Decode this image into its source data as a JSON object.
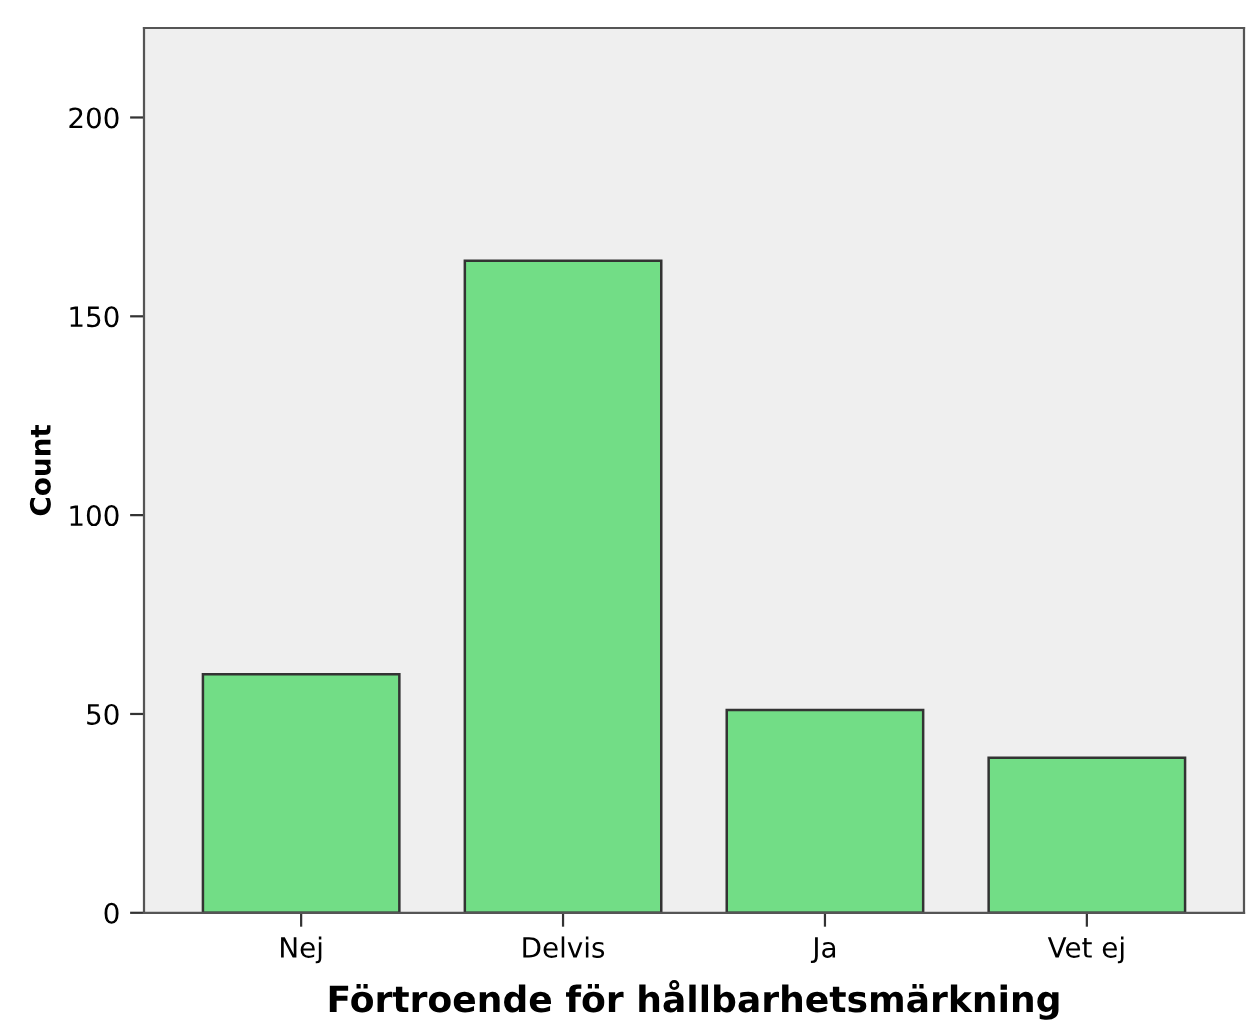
{
  "chart_data": {
    "type": "bar",
    "xlabel": "Förtroende för hållbarhetsmärkning",
    "ylabel": "Count",
    "categories": [
      "Nej",
      "Delvis",
      "Ja",
      "Vet ej"
    ],
    "values": [
      60,
      164,
      51,
      39
    ],
    "color": "#72dd86",
    "ylim": [
      0,
      222.5
    ],
    "yticks": [
      0,
      50,
      100,
      150,
      200
    ],
    "grid": false
  }
}
